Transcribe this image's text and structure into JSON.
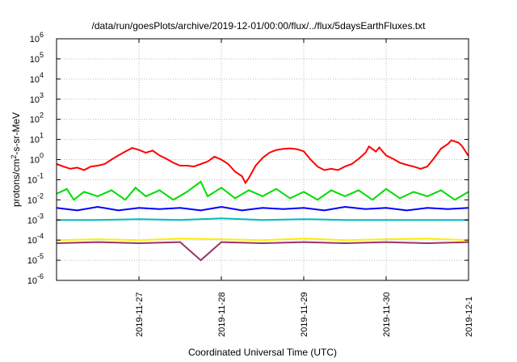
{
  "chart_data": {
    "type": "line",
    "title": "/data/run/goesPlots/archive/2019-12-01/00:00/flux/../flux/5daysEarthFluxes.txt",
    "xlabel": "Coordinated Universal Time (UTC)",
    "ylabel": "protons/cm²-s-sr-MeV",
    "ylabel_parts": {
      "pre": "protons/cm",
      "sup": "2",
      "post": "-s-sr-MeV"
    },
    "yscale": "log",
    "ylim_exp": [
      -6,
      6
    ],
    "y_ticks": [
      {
        "base": "10",
        "exp": "-6"
      },
      {
        "base": "10",
        "exp": "-5"
      },
      {
        "base": "10",
        "exp": "-4"
      },
      {
        "base": "10",
        "exp": "-3"
      },
      {
        "base": "10",
        "exp": "-2"
      },
      {
        "base": "10",
        "exp": "-1"
      },
      {
        "base": "10",
        "exp": "0"
      },
      {
        "base": "10",
        "exp": "1"
      },
      {
        "base": "10",
        "exp": "2"
      },
      {
        "base": "10",
        "exp": "3"
      },
      {
        "base": "10",
        "exp": "4"
      },
      {
        "base": "10",
        "exp": "5"
      },
      {
        "base": "10",
        "exp": "6"
      }
    ],
    "xlim": [
      "2019-11-26T00:00",
      "2019-12-01T00:00"
    ],
    "x_ticks": [
      {
        "label": "2019-11-27",
        "date": "2019-11-27T00:00"
      },
      {
        "label": "2019-11-28",
        "date": "2019-11-28T00:00"
      },
      {
        "label": "2019-11-29",
        "date": "2019-11-29T00:00"
      },
      {
        "label": "2019-11-30",
        "date": "2019-11-30T00:00"
      },
      {
        "label": "2019-12-1",
        "date": "2019-12-01T00:00"
      }
    ],
    "grid": true,
    "series": [
      {
        "color": "#ff0000",
        "points": [
          [
            "2019-11-26T00:00",
            0.6
          ],
          [
            "2019-11-26T02:00",
            0.45
          ],
          [
            "2019-11-26T04:00",
            0.35
          ],
          [
            "2019-11-26T06:00",
            0.4
          ],
          [
            "2019-11-26T08:00",
            0.3
          ],
          [
            "2019-11-26T10:00",
            0.45
          ],
          [
            "2019-11-26T12:00",
            0.5
          ],
          [
            "2019-11-26T14:00",
            0.6
          ],
          [
            "2019-11-26T16:00",
            1.0
          ],
          [
            "2019-11-26T18:00",
            1.6
          ],
          [
            "2019-11-26T20:00",
            2.5
          ],
          [
            "2019-11-26T22:00",
            3.8
          ],
          [
            "2019-11-27T00:00",
            3.0
          ],
          [
            "2019-11-27T02:00",
            2.2
          ],
          [
            "2019-11-27T04:00",
            2.8
          ],
          [
            "2019-11-27T06:00",
            1.6
          ],
          [
            "2019-11-27T08:00",
            1.1
          ],
          [
            "2019-11-27T10:00",
            0.7
          ],
          [
            "2019-11-27T12:00",
            0.5
          ],
          [
            "2019-11-27T14:00",
            0.5
          ],
          [
            "2019-11-27T16:00",
            0.45
          ],
          [
            "2019-11-27T18:00",
            0.6
          ],
          [
            "2019-11-27T20:00",
            0.8
          ],
          [
            "2019-11-27T22:00",
            1.4
          ],
          [
            "2019-11-28T00:00",
            1.0
          ],
          [
            "2019-11-28T02:00",
            0.6
          ],
          [
            "2019-11-28T04:00",
            0.25
          ],
          [
            "2019-11-28T06:00",
            0.15
          ],
          [
            "2019-11-28T07:00",
            0.07
          ],
          [
            "2019-11-28T08:00",
            0.12
          ],
          [
            "2019-11-28T10:00",
            0.5
          ],
          [
            "2019-11-28T12:00",
            1.2
          ],
          [
            "2019-11-28T14:00",
            2.2
          ],
          [
            "2019-11-28T16:00",
            3.0
          ],
          [
            "2019-11-28T18:00",
            3.4
          ],
          [
            "2019-11-28T20:00",
            3.6
          ],
          [
            "2019-11-28T22:00",
            3.3
          ],
          [
            "2019-11-29T00:00",
            2.6
          ],
          [
            "2019-11-29T02:00",
            1.0
          ],
          [
            "2019-11-29T04:00",
            0.45
          ],
          [
            "2019-11-29T06:00",
            0.3
          ],
          [
            "2019-11-29T08:00",
            0.35
          ],
          [
            "2019-11-29T10:00",
            0.3
          ],
          [
            "2019-11-29T12:00",
            0.45
          ],
          [
            "2019-11-29T14:00",
            0.6
          ],
          [
            "2019-11-29T16:00",
            1.1
          ],
          [
            "2019-11-29T18:00",
            2.2
          ],
          [
            "2019-11-29T19:00",
            4.5
          ],
          [
            "2019-11-29T21:00",
            2.5
          ],
          [
            "2019-11-29T22:00",
            4.0
          ],
          [
            "2019-11-30T00:00",
            1.6
          ],
          [
            "2019-11-30T02:00",
            1.1
          ],
          [
            "2019-11-30T04:00",
            0.7
          ],
          [
            "2019-11-30T06:00",
            0.55
          ],
          [
            "2019-11-30T08:00",
            0.45
          ],
          [
            "2019-11-30T10:00",
            0.35
          ],
          [
            "2019-11-30T12:00",
            0.45
          ],
          [
            "2019-11-30T14:00",
            1.2
          ],
          [
            "2019-11-30T16:00",
            3.5
          ],
          [
            "2019-11-30T18:00",
            6.0
          ],
          [
            "2019-11-30T19:00",
            9.0
          ],
          [
            "2019-11-30T21:00",
            7.0
          ],
          [
            "2019-11-30T22:00",
            5.0
          ],
          [
            "2019-12-01T00:00",
            1.5
          ]
        ]
      },
      {
        "color": "#00dd00",
        "points": [
          [
            "2019-11-26T00:00",
            0.02
          ],
          [
            "2019-11-26T03:00",
            0.035
          ],
          [
            "2019-11-26T05:00",
            0.01
          ],
          [
            "2019-11-26T08:00",
            0.025
          ],
          [
            "2019-11-26T12:00",
            0.015
          ],
          [
            "2019-11-26T16:00",
            0.03
          ],
          [
            "2019-11-26T20:00",
            0.01
          ],
          [
            "2019-11-26T23:00",
            0.04
          ],
          [
            "2019-11-27T02:00",
            0.015
          ],
          [
            "2019-11-27T06:00",
            0.03
          ],
          [
            "2019-11-27T10:00",
            0.01
          ],
          [
            "2019-11-27T14:00",
            0.025
          ],
          [
            "2019-11-27T18:00",
            0.08
          ],
          [
            "2019-11-27T20:00",
            0.015
          ],
          [
            "2019-11-28T00:00",
            0.04
          ],
          [
            "2019-11-28T04:00",
            0.012
          ],
          [
            "2019-11-28T08:00",
            0.03
          ],
          [
            "2019-11-28T12:00",
            0.015
          ],
          [
            "2019-11-28T16:00",
            0.035
          ],
          [
            "2019-11-28T20:00",
            0.012
          ],
          [
            "2019-11-29T00:00",
            0.025
          ],
          [
            "2019-11-29T04:00",
            0.01
          ],
          [
            "2019-11-29T08:00",
            0.03
          ],
          [
            "2019-11-29T12:00",
            0.015
          ],
          [
            "2019-11-29T16:00",
            0.03
          ],
          [
            "2019-11-29T20:00",
            0.01
          ],
          [
            "2019-11-30T00:00",
            0.035
          ],
          [
            "2019-11-30T04:00",
            0.012
          ],
          [
            "2019-11-30T08:00",
            0.025
          ],
          [
            "2019-11-30T12:00",
            0.015
          ],
          [
            "2019-11-30T16:00",
            0.03
          ],
          [
            "2019-11-30T20:00",
            0.01
          ],
          [
            "2019-12-01T00:00",
            0.025
          ]
        ]
      },
      {
        "color": "#0000ff",
        "points": [
          [
            "2019-11-26T00:00",
            0.004
          ],
          [
            "2019-11-26T06:00",
            0.003
          ],
          [
            "2019-11-26T12:00",
            0.0045
          ],
          [
            "2019-11-26T18:00",
            0.003
          ],
          [
            "2019-11-27T00:00",
            0.004
          ],
          [
            "2019-11-27T06:00",
            0.0035
          ],
          [
            "2019-11-27T12:00",
            0.004
          ],
          [
            "2019-11-27T18:00",
            0.003
          ],
          [
            "2019-11-28T00:00",
            0.0045
          ],
          [
            "2019-11-28T06:00",
            0.003
          ],
          [
            "2019-11-28T12:00",
            0.004
          ],
          [
            "2019-11-28T18:00",
            0.0035
          ],
          [
            "2019-11-29T00:00",
            0.004
          ],
          [
            "2019-11-29T06:00",
            0.003
          ],
          [
            "2019-11-29T12:00",
            0.0045
          ],
          [
            "2019-11-29T18:00",
            0.0035
          ],
          [
            "2019-11-30T00:00",
            0.004
          ],
          [
            "2019-11-30T06:00",
            0.003
          ],
          [
            "2019-11-30T12:00",
            0.004
          ],
          [
            "2019-11-30T18:00",
            0.0035
          ],
          [
            "2019-12-01T00:00",
            0.004
          ]
        ]
      },
      {
        "color": "#00bbbb",
        "points": [
          [
            "2019-11-26T00:00",
            0.001
          ],
          [
            "2019-11-26T12:00",
            0.001
          ],
          [
            "2019-11-27T00:00",
            0.0011
          ],
          [
            "2019-11-27T12:00",
            0.001
          ],
          [
            "2019-11-28T00:00",
            0.0012
          ],
          [
            "2019-11-28T12:00",
            0.001
          ],
          [
            "2019-11-29T00:00",
            0.0011
          ],
          [
            "2019-11-29T12:00",
            0.001
          ],
          [
            "2019-11-30T00:00",
            0.001
          ],
          [
            "2019-11-30T12:00",
            0.001
          ],
          [
            "2019-12-01T00:00",
            0.001
          ]
        ]
      },
      {
        "color": "#ffee00",
        "points": [
          [
            "2019-11-26T00:00",
            0.0001
          ],
          [
            "2019-11-26T12:00",
            0.00011
          ],
          [
            "2019-11-27T00:00",
            0.0001
          ],
          [
            "2019-11-27T12:00",
            0.00012
          ],
          [
            "2019-11-28T00:00",
            0.00011
          ],
          [
            "2019-11-28T12:00",
            0.0001
          ],
          [
            "2019-11-29T00:00",
            0.00012
          ],
          [
            "2019-11-29T12:00",
            0.0001
          ],
          [
            "2019-11-30T00:00",
            0.00011
          ],
          [
            "2019-11-30T12:00",
            0.00012
          ],
          [
            "2019-12-01T00:00",
            0.0001
          ]
        ]
      },
      {
        "color": "#993366",
        "points": [
          [
            "2019-11-26T00:00",
            7e-05
          ],
          [
            "2019-11-26T12:00",
            8e-05
          ],
          [
            "2019-11-27T00:00",
            7e-05
          ],
          [
            "2019-11-27T12:00",
            8e-05
          ],
          [
            "2019-11-27T18:00",
            1e-05
          ],
          [
            "2019-11-28T00:00",
            8e-05
          ],
          [
            "2019-11-28T12:00",
            7e-05
          ],
          [
            "2019-11-29T00:00",
            8e-05
          ],
          [
            "2019-11-29T12:00",
            7e-05
          ],
          [
            "2019-11-30T00:00",
            8e-05
          ],
          [
            "2019-11-30T12:00",
            7e-05
          ],
          [
            "2019-12-01T00:00",
            8e-05
          ]
        ]
      }
    ]
  }
}
